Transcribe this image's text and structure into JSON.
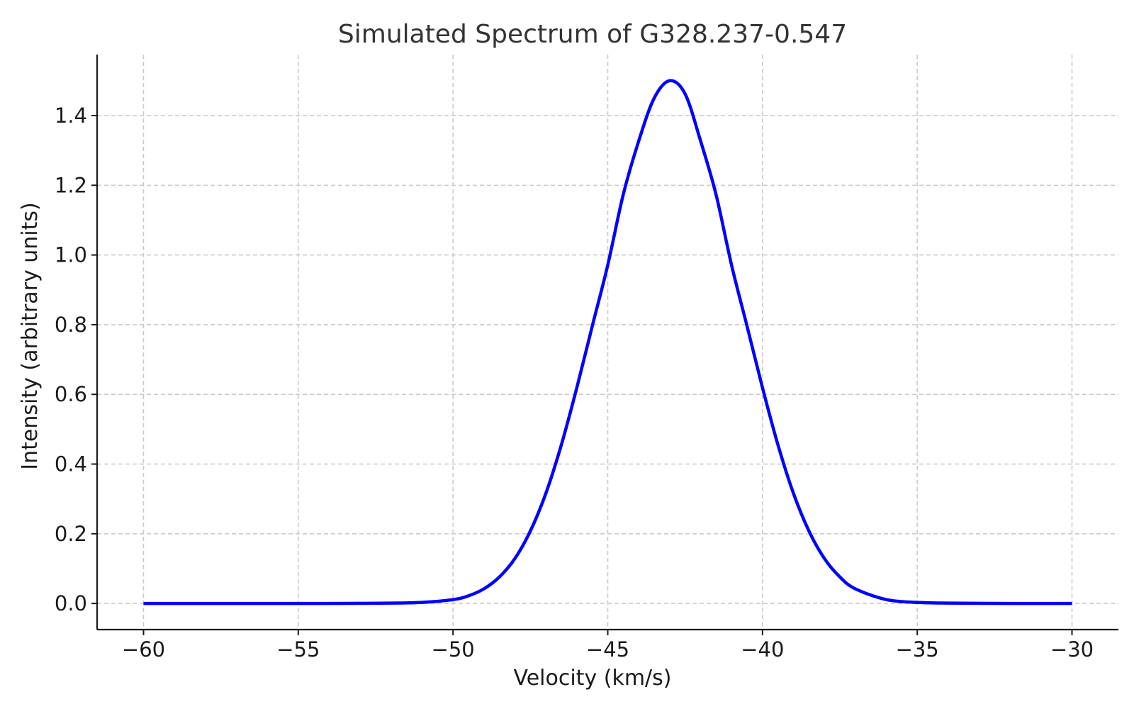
{
  "chart_data": {
    "type": "line",
    "title": "Simulated Spectrum of G328.237-0.547",
    "xlabel": "Velocity (km/s)",
    "ylabel": "Intensity (arbitrary units)",
    "xlim": [
      -61.5,
      -28.5
    ],
    "ylim": [
      -0.075,
      1.575
    ],
    "x_ticks": [
      -60,
      -55,
      -50,
      -45,
      -40,
      -35,
      -30
    ],
    "x_tick_labels": [
      "−60",
      "−55",
      "−50",
      "−45",
      "−40",
      "−35",
      "−30"
    ],
    "y_ticks": [
      0.0,
      0.2,
      0.4,
      0.6,
      0.8,
      1.0,
      1.2,
      1.4
    ],
    "y_tick_labels": [
      "0.0",
      "0.2",
      "0.4",
      "0.6",
      "0.8",
      "1.0",
      "1.2",
      "1.4"
    ],
    "grid": true,
    "series": [
      {
        "color": "#0000ff",
        "x": [
          -60,
          -58,
          -56,
          -54,
          -52,
          -51,
          -50,
          -49.5,
          -49,
          -48.5,
          -48,
          -47.5,
          -47,
          -46.5,
          -46,
          -45.5,
          -45,
          -44.5,
          -44,
          -43.5,
          -43,
          -42.5,
          -42,
          -41.5,
          -41,
          -40.5,
          -40,
          -39.5,
          -39,
          -38.5,
          -38,
          -37.5,
          -37,
          -36,
          -35,
          -34,
          -32,
          -30
        ],
        "y": [
          0.0,
          0.0,
          0.0,
          0.0,
          0.001,
          0.003,
          0.011,
          0.022,
          0.042,
          0.076,
          0.129,
          0.208,
          0.316,
          0.455,
          0.619,
          0.796,
          0.971,
          1.173,
          1.327,
          1.45,
          1.5,
          1.462,
          1.327,
          1.173,
          0.971,
          0.796,
          0.619,
          0.455,
          0.316,
          0.208,
          0.129,
          0.076,
          0.042,
          0.011,
          0.003,
          0.001,
          0.0,
          0.0
        ]
      }
    ]
  }
}
